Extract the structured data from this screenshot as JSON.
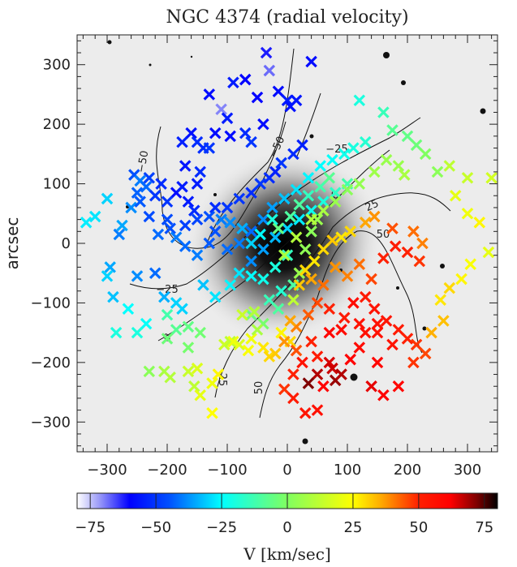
{
  "chart_data": {
    "type": "scatter",
    "title": "NGC 4374 (radial velocity)",
    "xlabel": "",
    "ylabel": "arcsec",
    "xlim": [
      -350,
      350
    ],
    "ylim": [
      -350,
      350
    ],
    "xticks": [
      -300,
      -200,
      -100,
      0,
      100,
      200,
      300
    ],
    "yticks": [
      -300,
      -200,
      -100,
      0,
      100,
      200,
      300
    ],
    "xtick_labels": [
      "−300",
      "−200",
      "−100",
      "0",
      "100",
      "200",
      "300"
    ],
    "ytick_labels": [
      "−300",
      "−200",
      "−100",
      "0",
      "100",
      "200",
      "300"
    ],
    "grid": false,
    "marker": "x",
    "colorbar": {
      "label": "V [km/sec]",
      "range": [
        -80,
        80
      ],
      "ticks": [
        -75,
        -50,
        -25,
        0,
        25,
        50,
        75
      ],
      "tick_labels": [
        "−75",
        "−50",
        "−25",
        "0",
        "25",
        "50",
        "75"
      ],
      "colormap_stops": [
        {
          "v": -80,
          "color": "#ffffff"
        },
        {
          "v": -72,
          "color": "#a0a0f8"
        },
        {
          "v": -60,
          "color": "#0000ff"
        },
        {
          "v": -45,
          "color": "#0050ff"
        },
        {
          "v": -25,
          "color": "#00ffff"
        },
        {
          "v": 0,
          "color": "#80ff60"
        },
        {
          "v": 25,
          "color": "#ffff00"
        },
        {
          "v": 35,
          "color": "#ffb000"
        },
        {
          "v": 50,
          "color": "#ff2000"
        },
        {
          "v": 62,
          "color": "#ff0000"
        },
        {
          "v": 72,
          "color": "#800000"
        },
        {
          "v": 80,
          "color": "#000000"
        }
      ]
    },
    "contours": [
      {
        "level": -50,
        "label": "−50"
      },
      {
        "level": -25,
        "label": "−25"
      },
      {
        "level": 0,
        "label": "0"
      },
      {
        "level": 25,
        "label": "25"
      },
      {
        "level": 50,
        "label": "50"
      }
    ],
    "points": [
      [
        -35,
        320,
        -62
      ],
      [
        -30,
        290,
        -68
      ],
      [
        40,
        305,
        -58
      ],
      [
        -70,
        275,
        -60
      ],
      [
        -90,
        270,
        -55
      ],
      [
        -130,
        250,
        -58
      ],
      [
        -110,
        225,
        -70
      ],
      [
        -50,
        245,
        -60
      ],
      [
        -15,
        255,
        -58
      ],
      [
        0,
        240,
        -55
      ],
      [
        5,
        230,
        -57
      ],
      [
        15,
        240,
        -56
      ],
      [
        -40,
        200,
        -58
      ],
      [
        -100,
        210,
        -55
      ],
      [
        -120,
        185,
        -58
      ],
      [
        -95,
        180,
        -58
      ],
      [
        -70,
        185,
        -52
      ],
      [
        -60,
        170,
        -50
      ],
      [
        -140,
        160,
        -52
      ],
      [
        -130,
        160,
        -50
      ],
      [
        -160,
        185,
        -57
      ],
      [
        -150,
        170,
        -52
      ],
      [
        -175,
        170,
        -54
      ],
      [
        -145,
        120,
        -52
      ],
      [
        -150,
        100,
        -55
      ],
      [
        -170,
        130,
        -56
      ],
      [
        -185,
        85,
        -58
      ],
      [
        -175,
        95,
        -55
      ],
      [
        -165,
        70,
        -55
      ],
      [
        -155,
        55,
        -52
      ],
      [
        -120,
        60,
        -52
      ],
      [
        -100,
        60,
        -50
      ],
      [
        -80,
        75,
        -50
      ],
      [
        -60,
        85,
        -52
      ],
      [
        -45,
        100,
        -50
      ],
      [
        -30,
        110,
        -52
      ],
      [
        -20,
        120,
        -54
      ],
      [
        -10,
        135,
        -50
      ],
      [
        10,
        150,
        -52
      ],
      [
        25,
        165,
        -54
      ],
      [
        -255,
        115,
        -45
      ],
      [
        -245,
        105,
        -40
      ],
      [
        -235,
        95,
        -42
      ],
      [
        -250,
        85,
        -43
      ],
      [
        -260,
        60,
        -38
      ],
      [
        -275,
        30,
        -35
      ],
      [
        -280,
        15,
        -40
      ],
      [
        -300,
        75,
        -30
      ],
      [
        -320,
        45,
        -28
      ],
      [
        -335,
        35,
        -27
      ],
      [
        -245,
        70,
        -44
      ],
      [
        -230,
        45,
        -46
      ],
      [
        -200,
        40,
        -46
      ],
      [
        -195,
        25,
        -45
      ],
      [
        -215,
        15,
        -42
      ],
      [
        -185,
        10,
        -40
      ],
      [
        -170,
        -5,
        -42
      ],
      [
        -150,
        -20,
        -40
      ],
      [
        -130,
        0,
        -44
      ],
      [
        -120,
        20,
        -45
      ],
      [
        -100,
        -10,
        -42
      ],
      [
        -80,
        0,
        -40
      ],
      [
        -60,
        20,
        -42
      ],
      [
        -40,
        40,
        -38
      ],
      [
        -25,
        60,
        -36
      ],
      [
        -5,
        75,
        -32
      ],
      [
        15,
        90,
        -28
      ],
      [
        35,
        110,
        -26
      ],
      [
        55,
        130,
        -25
      ],
      [
        75,
        140,
        -24
      ],
      [
        95,
        150,
        -22
      ],
      [
        110,
        160,
        -20
      ],
      [
        -60,
        -30,
        -38
      ],
      [
        -40,
        -10,
        -36
      ],
      [
        -20,
        10,
        -33
      ],
      [
        0,
        25,
        -30
      ],
      [
        20,
        40,
        -27
      ],
      [
        40,
        55,
        -23
      ],
      [
        60,
        70,
        -20
      ],
      [
        80,
        85,
        -16
      ],
      [
        100,
        100,
        -12
      ],
      [
        -220,
        -50,
        -42
      ],
      [
        -250,
        -55,
        -38
      ],
      [
        -295,
        -40,
        -35
      ],
      [
        -300,
        -55,
        -30
      ],
      [
        -290,
        -90,
        -32
      ],
      [
        -265,
        -110,
        -25
      ],
      [
        -235,
        -135,
        -24
      ],
      [
        -250,
        -150,
        -20
      ],
      [
        -285,
        -150,
        -20
      ],
      [
        -205,
        -90,
        -34
      ],
      [
        -185,
        -100,
        -30
      ],
      [
        -175,
        -110,
        -30
      ],
      [
        -140,
        -70,
        -32
      ],
      [
        -120,
        -90,
        -28
      ],
      [
        -95,
        -70,
        -26
      ],
      [
        -80,
        -50,
        -28
      ],
      [
        -60,
        -55,
        -25
      ],
      [
        -40,
        -60,
        -22
      ],
      [
        -20,
        -40,
        -20
      ],
      [
        0,
        -20,
        -15
      ],
      [
        -10,
        -80,
        -18
      ],
      [
        -30,
        -95,
        -14
      ],
      [
        -15,
        -110,
        -10
      ],
      [
        10,
        -70,
        -10
      ],
      [
        -200,
        -120,
        -12
      ],
      [
        -185,
        -145,
        -8
      ],
      [
        -165,
        -140,
        -6
      ],
      [
        -200,
        -160,
        -4
      ],
      [
        -165,
        -175,
        -2
      ],
      [
        -145,
        -150,
        -3
      ],
      [
        -60,
        -120,
        -5
      ],
      [
        -40,
        -135,
        -2
      ],
      [
        -230,
        -215,
        2
      ],
      [
        -205,
        -215,
        8
      ],
      [
        -195,
        -225,
        10
      ],
      [
        -165,
        -215,
        14
      ],
      [
        -150,
        -210,
        18
      ],
      [
        -155,
        -240,
        12
      ],
      [
        -145,
        -255,
        20
      ],
      [
        -125,
        -235,
        22
      ],
      [
        -115,
        -220,
        26
      ],
      [
        -105,
        -170,
        15
      ],
      [
        -95,
        -165,
        12
      ],
      [
        -80,
        -170,
        18
      ],
      [
        -60,
        -160,
        22
      ],
      [
        -40,
        -175,
        28
      ],
      [
        -30,
        -190,
        30
      ],
      [
        -20,
        -185,
        32
      ],
      [
        -55,
        -115,
        10
      ],
      [
        -75,
        -120,
        14
      ],
      [
        -50,
        -145,
        8
      ],
      [
        -125,
        -285,
        25
      ],
      [
        -90,
        -165,
        22
      ],
      [
        -65,
        -180,
        24
      ],
      [
        -10,
        -150,
        26
      ],
      [
        5,
        -165,
        30
      ],
      [
        10,
        -95,
        12
      ],
      [
        20,
        -50,
        5
      ],
      [
        30,
        -10,
        3
      ],
      [
        40,
        20,
        2
      ],
      [
        50,
        40,
        5
      ],
      [
        20,
        65,
        -10
      ],
      [
        35,
        80,
        -15
      ],
      [
        55,
        95,
        -12
      ],
      [
        70,
        110,
        -8
      ],
      [
        120,
        240,
        -20
      ],
      [
        130,
        170,
        -18
      ],
      [
        160,
        220,
        -14
      ],
      [
        175,
        190,
        -8
      ],
      [
        200,
        180,
        -6
      ],
      [
        215,
        165,
        -4
      ],
      [
        230,
        150,
        0
      ],
      [
        250,
        120,
        2
      ],
      [
        185,
        130,
        5
      ],
      [
        195,
        115,
        8
      ],
      [
        165,
        140,
        5
      ],
      [
        145,
        120,
        6
      ],
      [
        120,
        100,
        4
      ],
      [
        100,
        90,
        2
      ],
      [
        80,
        70,
        5
      ],
      [
        60,
        55,
        8
      ],
      [
        40,
        40,
        10
      ],
      [
        270,
        130,
        12
      ],
      [
        300,
        110,
        14
      ],
      [
        340,
        110,
        16
      ],
      [
        280,
        80,
        20
      ],
      [
        300,
        50,
        22
      ],
      [
        320,
        35,
        26
      ],
      [
        335,
        -15,
        20
      ],
      [
        305,
        -35,
        24
      ],
      [
        290,
        -60,
        26
      ],
      [
        270,
        -75,
        30
      ],
      [
        255,
        -95,
        28
      ],
      [
        260,
        -130,
        33
      ],
      [
        240,
        -150,
        35
      ],
      [
        225,
        0,
        40
      ],
      [
        210,
        20,
        42
      ],
      [
        175,
        25,
        45
      ],
      [
        145,
        45,
        38
      ],
      [
        130,
        35,
        36
      ],
      [
        105,
        20,
        30
      ],
      [
        90,
        10,
        28
      ],
      [
        75,
        5,
        32
      ],
      [
        60,
        -10,
        30
      ],
      [
        45,
        -30,
        28
      ],
      [
        30,
        -45,
        30
      ],
      [
        20,
        -70,
        32
      ],
      [
        80,
        -40,
        38
      ],
      [
        100,
        -55,
        40
      ],
      [
        120,
        -35,
        42
      ],
      [
        140,
        -60,
        46
      ],
      [
        160,
        -25,
        50
      ],
      [
        180,
        -5,
        52
      ],
      [
        200,
        -15,
        50
      ],
      [
        220,
        -30,
        48
      ],
      [
        130,
        -90,
        52
      ],
      [
        145,
        -110,
        55
      ],
      [
        165,
        -130,
        54
      ],
      [
        185,
        -145,
        52
      ],
      [
        200,
        -160,
        50
      ],
      [
        215,
        -170,
        48
      ],
      [
        230,
        -185,
        46
      ],
      [
        210,
        -200,
        48
      ],
      [
        175,
        -170,
        55
      ],
      [
        150,
        -150,
        56
      ],
      [
        120,
        -135,
        55
      ],
      [
        95,
        -125,
        52
      ],
      [
        70,
        -110,
        50
      ],
      [
        50,
        -100,
        46
      ],
      [
        35,
        -120,
        44
      ],
      [
        15,
        -140,
        40
      ],
      [
        5,
        -130,
        36
      ],
      [
        -5,
        -165,
        38
      ],
      [
        15,
        -180,
        45
      ],
      [
        40,
        -165,
        50
      ],
      [
        50,
        -190,
        52
      ],
      [
        25,
        -200,
        55
      ],
      [
        10,
        -220,
        50
      ],
      [
        -5,
        -245,
        48
      ],
      [
        10,
        -260,
        52
      ],
      [
        30,
        -285,
        54
      ],
      [
        50,
        -280,
        56
      ],
      [
        70,
        -200,
        65
      ],
      [
        75,
        -210,
        66
      ],
      [
        50,
        -220,
        68
      ],
      [
        60,
        -240,
        62
      ],
      [
        35,
        -235,
        72
      ],
      [
        80,
        -230,
        70
      ],
      [
        90,
        -220,
        68
      ],
      [
        105,
        -195,
        62
      ],
      [
        120,
        -175,
        58
      ],
      [
        150,
        -200,
        60
      ],
      [
        140,
        -240,
        64
      ],
      [
        160,
        -255,
        62
      ],
      [
        185,
        -240,
        60
      ],
      [
        70,
        -150,
        60
      ],
      [
        90,
        -145,
        58
      ],
      [
        110,
        -100,
        58
      ],
      [
        130,
        -150,
        56
      ],
      [
        150,
        -135,
        56
      ],
      [
        60,
        -70,
        42
      ],
      [
        40,
        -60,
        36
      ],
      [
        -5,
        -20,
        8
      ],
      [
        15,
        10,
        10
      ],
      [
        -15,
        25,
        -5
      ],
      [
        5,
        45,
        -10
      ],
      [
        -25,
        40,
        -20
      ],
      [
        -45,
        15,
        -25
      ],
      [
        -60,
        0,
        -30
      ],
      [
        -75,
        25,
        -34
      ],
      [
        -95,
        35,
        -38
      ],
      [
        -110,
        40,
        -40
      ],
      [
        -130,
        45,
        -45
      ],
      [
        -150,
        40,
        -47
      ],
      [
        -170,
        30,
        -48
      ],
      [
        -200,
        70,
        -50
      ],
      [
        -210,
        100,
        -52
      ],
      [
        -220,
        80,
        -50
      ],
      [
        -230,
        110,
        -48
      ]
    ]
  }
}
